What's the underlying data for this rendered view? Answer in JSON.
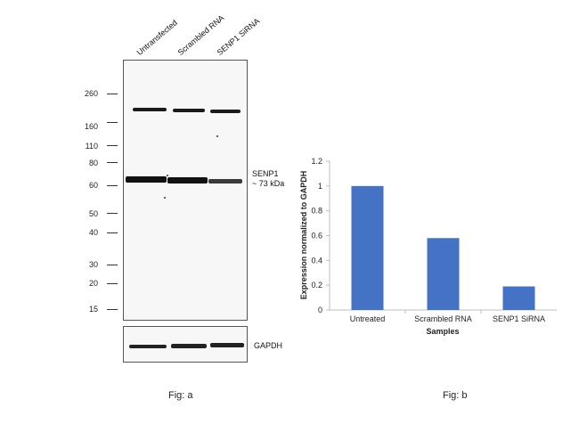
{
  "western_blot": {
    "lanes": [
      "Untransfected",
      "Scrambled RNA",
      "SENP1 SiRNA"
    ],
    "mw_markers": [
      "260",
      "160",
      "110",
      "80",
      "60",
      "50",
      "40",
      "30",
      "20",
      "15"
    ],
    "target_label_line1": "SENP1",
    "target_label_line2": "~ 73 kDa",
    "loading_control_label": "GAPDH",
    "caption": "Fig: a"
  },
  "chart_data": {
    "type": "bar",
    "categories": [
      "Untreated",
      "Scrambled RNA",
      "SENP1 SiRNA"
    ],
    "values": [
      1.0,
      0.58,
      0.19
    ],
    "xlabel": "Samples",
    "ylabel": "Expression normalized to GAPDH",
    "ylim": [
      0,
      1.2
    ],
    "yticks": [
      "0",
      "0.2",
      "0.4",
      "0.6",
      "0.8",
      "1",
      "1.2"
    ],
    "grid": false,
    "bar_color": "#4472c4",
    "caption": "Fig: b"
  }
}
